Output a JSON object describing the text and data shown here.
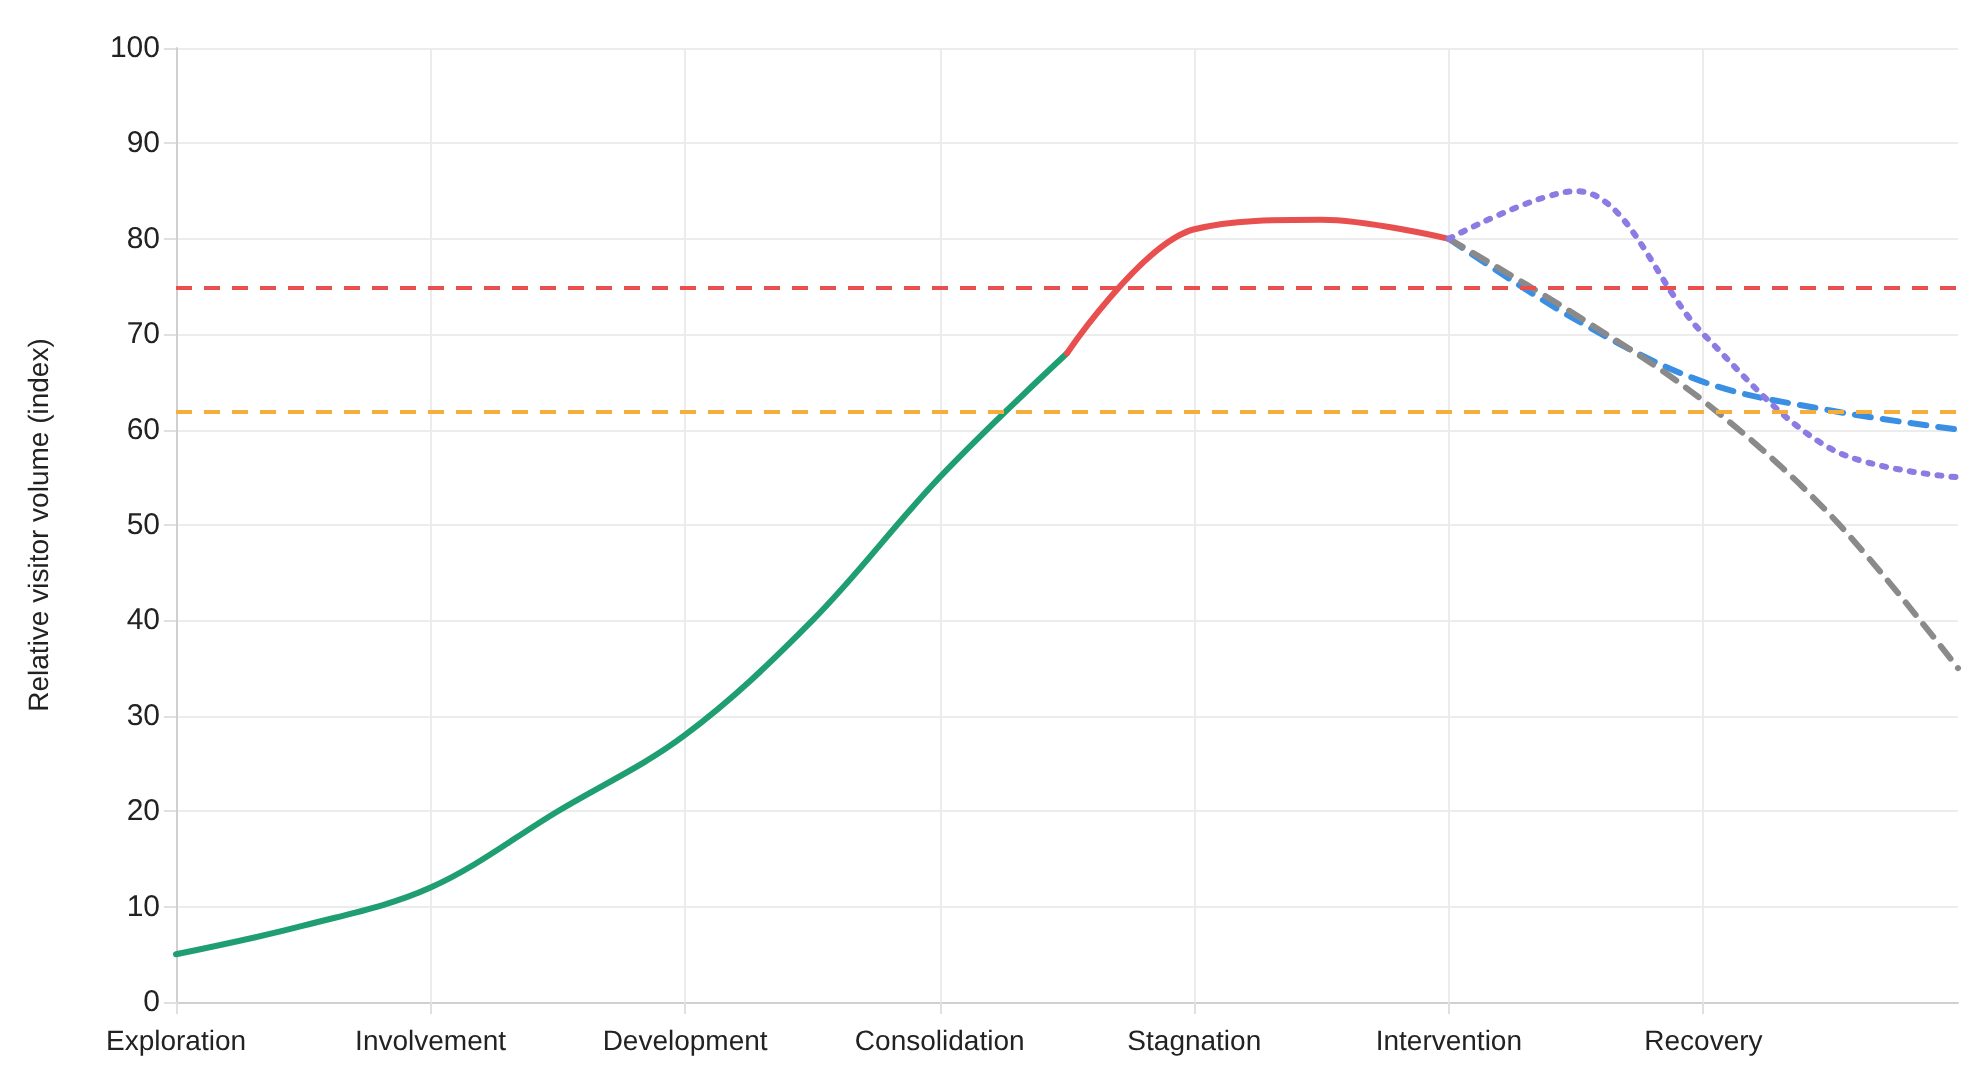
{
  "chart_data": {
    "type": "line",
    "ylabel": "Relative visitor volume (index)",
    "categories": [
      "Exploration",
      null,
      "Involvement",
      null,
      "Development",
      null,
      "Consolidation",
      null,
      "Stagnation",
      null,
      "Intervention",
      null,
      "Recovery",
      null,
      null
    ],
    "ylim": [
      0,
      100
    ],
    "yticks": [
      0,
      10,
      20,
      30,
      40,
      50,
      60,
      70,
      80,
      90,
      100
    ],
    "grid": true,
    "marker": "none",
    "series": [
      {
        "color": "#1f9e72",
        "line_style": "solid",
        "values": [
          5,
          8,
          12,
          20,
          28,
          40,
          55,
          68,
          null,
          null,
          null,
          null,
          null,
          null,
          null
        ]
      },
      {
        "color": "#e8504f",
        "line_style": "solid",
        "values": [
          null,
          null,
          null,
          null,
          null,
          null,
          null,
          68,
          81,
          82,
          80,
          null,
          null,
          null,
          null
        ]
      },
      {
        "color": "#3b8fe3",
        "line_style": "dashed",
        "values": [
          null,
          null,
          null,
          null,
          null,
          null,
          null,
          null,
          null,
          null,
          80,
          71.5,
          65,
          62,
          60
        ]
      },
      {
        "color": "#8a8a8a",
        "line_style": "dashed",
        "values": [
          null,
          null,
          null,
          null,
          null,
          null,
          null,
          null,
          null,
          null,
          80,
          72,
          63,
          51,
          35
        ]
      },
      {
        "color": "#8c7be3",
        "line_style": "dotted",
        "values": [
          null,
          null,
          null,
          null,
          null,
          null,
          null,
          null,
          null,
          null,
          80,
          85,
          70,
          58,
          55
        ]
      }
    ],
    "ref_lines": [
      {
        "axis": "y",
        "value": 75,
        "color": "#e8504f",
        "line_style": "dashed"
      },
      {
        "axis": "y",
        "value": 62,
        "color": "#f5ae3c",
        "line_style": "dashed"
      }
    ]
  }
}
